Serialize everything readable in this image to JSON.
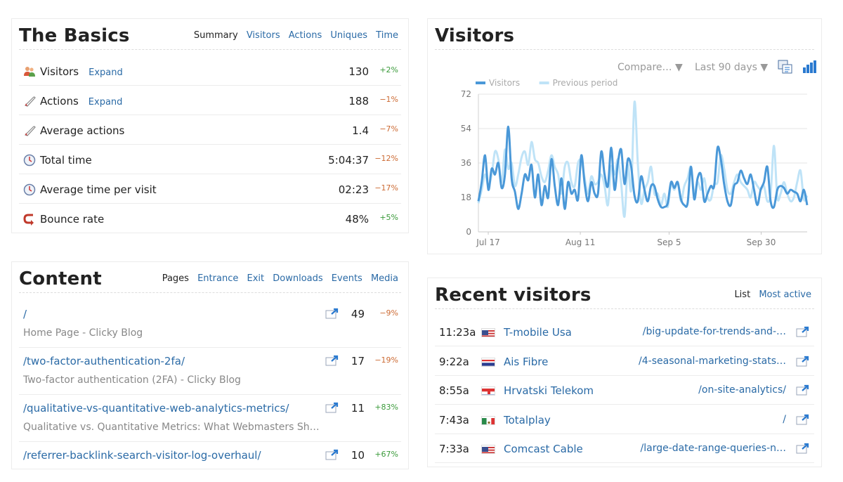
{
  "basics": {
    "title": "The Basics",
    "tabs": [
      "Summary",
      "Visitors",
      "Actions",
      "Uniques",
      "Time"
    ],
    "rows": [
      {
        "label": "Visitors",
        "expand": "Expand",
        "value": "130",
        "change": "+2%"
      },
      {
        "label": "Actions",
        "expand": "Expand",
        "value": "188",
        "change": "−1%"
      },
      {
        "label": "Average actions",
        "expand": "",
        "value": "1.4",
        "change": "−7%"
      },
      {
        "label": "Total time",
        "expand": "",
        "value": "5:04:37",
        "change": "−12%"
      },
      {
        "label": "Average time per visit",
        "expand": "",
        "value": "02:23",
        "change": "−17%"
      },
      {
        "label": "Bounce rate",
        "expand": "",
        "value": "48%",
        "change": "+5%"
      }
    ]
  },
  "content": {
    "title": "Content",
    "tabs": [
      "Pages",
      "Entrance",
      "Exit",
      "Downloads",
      "Events",
      "Media"
    ],
    "rows": [
      {
        "path": "/",
        "title": "Home Page - Clicky Blog",
        "value": "49",
        "change": "−9%"
      },
      {
        "path": "/two-factor-authentication-2fa/",
        "title": "Two-factor authentication (2FA) - Clicky Blog",
        "value": "17",
        "change": "−19%"
      },
      {
        "path": "/qualitative-vs-quantitative-web-analytics-metrics/",
        "title": "Qualitative vs. Quantitative Metrics: What Webmasters Should…",
        "value": "11",
        "change": "+83%"
      },
      {
        "path": "/referrer-backlink-search-visitor-log-overhaul/",
        "title": "",
        "value": "10",
        "change": "+67%"
      }
    ]
  },
  "visitors_panel": {
    "title": "Visitors",
    "compare": "Compare…",
    "range": "Last 90 days",
    "compare_arrow": "▼",
    "range_arrow": "▼"
  },
  "recent": {
    "title": "Recent visitors",
    "tabs": [
      "List",
      "Most active"
    ],
    "rows": [
      {
        "time": "11:23a",
        "flag": "us",
        "isp": "T-mobile Usa",
        "page": "/big-update-for-trends-and-…"
      },
      {
        "time": "9:22a",
        "flag": "th",
        "isp": "Ais Fibre",
        "page": "/4-seasonal-marketing-stats…"
      },
      {
        "time": "8:55a",
        "flag": "hr",
        "isp": "Hrvatski Telekom",
        "page": "/on-site-analytics/"
      },
      {
        "time": "7:43a",
        "flag": "mx",
        "isp": "Totalplay",
        "page": "/"
      },
      {
        "time": "7:33a",
        "flag": "us",
        "isp": "Comcast Cable",
        "page": "/large-date-range-queries-n…"
      }
    ]
  },
  "colors": {
    "link": "#2a6aa6",
    "positive": "#3a9a3a",
    "negative": "#cc6a33",
    "series_current": "#4a98d8",
    "series_previous": "#bfe3f7"
  },
  "chart_data": {
    "type": "line",
    "title": "",
    "xlabel": "",
    "ylabel": "",
    "ylim": [
      0,
      72
    ],
    "yticks": [
      "0",
      "18",
      "36",
      "54",
      "72"
    ],
    "xticks": [
      "Jul 17",
      "Aug 11",
      "Sep 5",
      "Sep 30"
    ],
    "legend_position": "top-left",
    "grid": true,
    "series": [
      {
        "name": "Visitors",
        "values": [
          16,
          26,
          40,
          22,
          33,
          30,
          36,
          23,
          30,
          55,
          28,
          21,
          12,
          20,
          30,
          27,
          35,
          18,
          30,
          14,
          24,
          18,
          38,
          24,
          14,
          28,
          12,
          26,
          20,
          22,
          17,
          40,
          25,
          16,
          26,
          20,
          20,
          42,
          30,
          24,
          44,
          22,
          36,
          43,
          25,
          38,
          34,
          19,
          16,
          29,
          22,
          16,
          24,
          24,
          17,
          13,
          13,
          15,
          26,
          23,
          26,
          17,
          14,
          15,
          34,
          17,
          28,
          30,
          16,
          20,
          24,
          24,
          44,
          38,
          25,
          16,
          14,
          24,
          26,
          32,
          28,
          25,
          30,
          22,
          14,
          22,
          26,
          34,
          16,
          13,
          22,
          24,
          23,
          20,
          22,
          21,
          20,
          16,
          22,
          14
        ]
      },
      {
        "name": "Previous period",
        "values": [
          15,
          22,
          30,
          24,
          30,
          42,
          38,
          26,
          43,
          33,
          36,
          24,
          30,
          39,
          42,
          35,
          47,
          38,
          36,
          29,
          26,
          32,
          40,
          34,
          30,
          20,
          34,
          36,
          26,
          24,
          36,
          37,
          28,
          20,
          29,
          25,
          26,
          30,
          24,
          14,
          34,
          30,
          38,
          25,
          8,
          35,
          22,
          68,
          36,
          15,
          22,
          26,
          34,
          20,
          20,
          14,
          20,
          13,
          25,
          22,
          26,
          16,
          24,
          28,
          34,
          20,
          26,
          22,
          28,
          18,
          17,
          25,
          26,
          40,
          33,
          22,
          20,
          26,
          30,
          26,
          24,
          22,
          18,
          26,
          24,
          22,
          24,
          16,
          20,
          45,
          18,
          20,
          26,
          20,
          16,
          18,
          26,
          32,
          17,
          19
        ]
      }
    ]
  }
}
